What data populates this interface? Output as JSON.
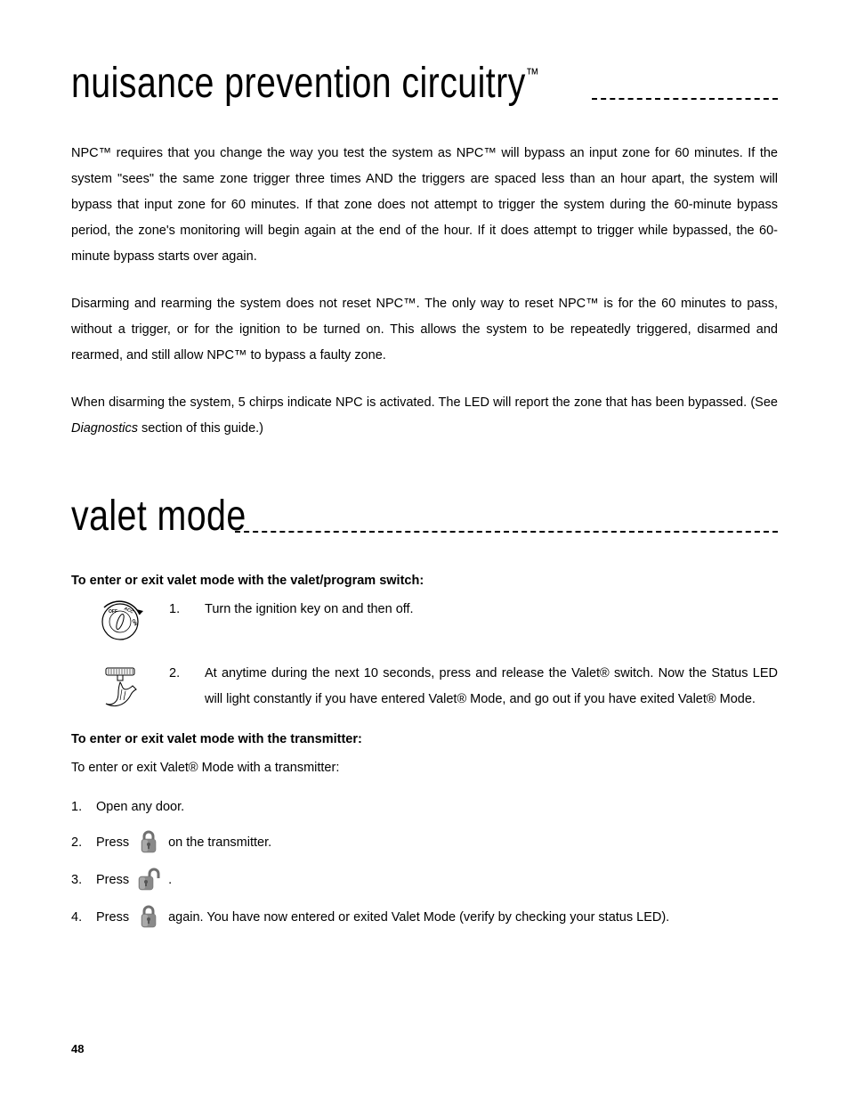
{
  "page_number": "48",
  "section1": {
    "title_html": "nuisance prevention circuitry<sup>™</sup>",
    "para1": "NPC™ requires that you change the way you test the system as NPC™ will bypass an input zone for 60 minutes. If the system \"sees\" the same zone trigger three times AND the triggers are spaced less than an hour apart, the system will bypass that input zone for 60 minutes. If that zone does not attempt to trigger the system during the 60-minute bypass period, the zone's monitoring will begin again at the end of the hour. If it does attempt to trigger while bypassed, the 60-minute bypass starts over again.",
    "para2": "Disarming and rearming the system does not reset NPC™. The only way to reset NPC™ is for the 60 minutes to pass, without a trigger, or for the ignition to be turned on. This allows the system to be repeatedly triggered, disarmed and rearmed, and still allow NPC™ to bypass a faulty zone.",
    "para3_html": "When disarming the system, 5 chirps indicate NPC is activated. The LED will report the zone that has been bypassed. (See <span class=\"italic\">Diagnostics</span> section of this guide.)"
  },
  "section2": {
    "title": "valet mode",
    "sub1": {
      "heading": "To enter or exit valet mode with the valet/program switch:",
      "step1": {
        "num": "1.",
        "text": "Turn the ignition key on and then off."
      },
      "step2": {
        "num": "2.",
        "text": "At anytime during the next 10 seconds, press and release the Valet® switch. Now the Status LED will light constantly if you have entered Valet® Mode, and go out if you have exited Valet® Mode."
      }
    },
    "sub2": {
      "heading": "To enter or exit valet mode with the transmitter:",
      "intro": "To enter or exit Valet® Mode with a transmitter:",
      "steps": {
        "s1": {
          "num": "1.",
          "text": "Open any door."
        },
        "s2": {
          "num": "2.",
          "pre": "Press",
          "post": "on the transmitter."
        },
        "s3": {
          "num": "3.",
          "pre": "Press",
          "post": "."
        },
        "s4": {
          "num": "4.",
          "pre": "Press",
          "post": "again. You have now entered or exited Valet Mode (verify by checking your status LED)."
        }
      }
    }
  },
  "icons": {
    "ignition_labels": {
      "off": "OFF",
      "acc": "ACC",
      "on": "ON"
    },
    "lock_color": "#8a8a8a",
    "lock_highlight": "#c9c9c9"
  }
}
